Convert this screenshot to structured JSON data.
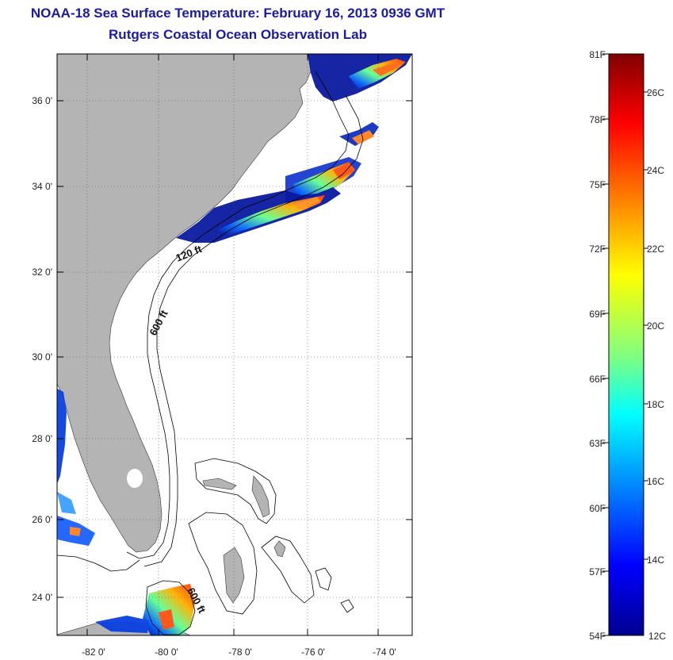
{
  "title": "NOAA-18 Sea Surface Temperature:  February 16, 2013 0936 GMT",
  "subtitle": "Rutgers Coastal Ocean Observation Lab",
  "map": {
    "lat_labels": [
      "36 0'",
      "34 0'",
      "32 0'",
      "30 0'",
      "28 0'",
      "26 0'",
      "24 0'"
    ],
    "lon_labels": [
      "-82 0'",
      "-80 0'",
      "-78 0'",
      "-76 0'",
      "-74 0'"
    ],
    "contour_labels": {
      "c120": "120 ft",
      "c600a": "600 ft",
      "c600b": "600 ft"
    },
    "colors": {
      "land": "#b4b4b4",
      "ocean": "#ffffff",
      "contour": "#000000"
    }
  },
  "colorbar": {
    "f_labels": [
      "81F",
      "78F",
      "75F",
      "72F",
      "69F",
      "66F",
      "63F",
      "60F",
      "57F",
      "54F"
    ],
    "c_labels": [
      "26C",
      "24C",
      "22C",
      "20C",
      "18C",
      "16C",
      "14C",
      "12C"
    ],
    "gradient_stops": [
      "#7f0000",
      "#ff0000",
      "#ff8000",
      "#ffff00",
      "#80ff80",
      "#00ffff",
      "#0080ff",
      "#0000ff",
      "#00008f"
    ]
  }
}
